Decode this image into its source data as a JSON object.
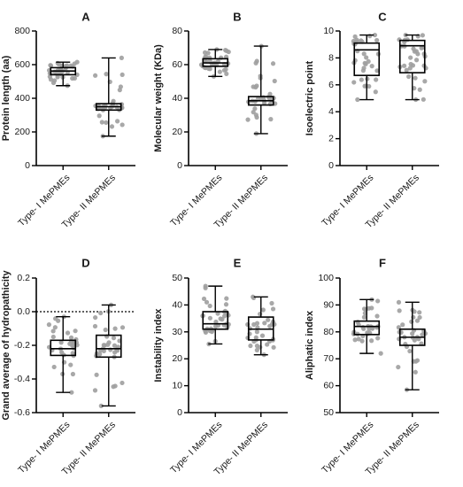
{
  "chart_data": [
    {
      "type": "box",
      "panel": "A",
      "ylabel": "Protein length (aa)",
      "ylim": [
        0,
        800
      ],
      "yticks": [
        "0",
        "200",
        "400",
        "600",
        "800"
      ],
      "categories": [
        "Type- I MePMEs",
        "Type- II MePMEs"
      ],
      "boxes": [
        {
          "name": "Type- I MePMEs",
          "min": 475,
          "q1": 540,
          "median": 562,
          "q3": 582,
          "max": 615
        },
        {
          "name": "Type- II MePMEs",
          "min": 175,
          "q1": 330,
          "median": 350,
          "q3": 368,
          "max": 640
        }
      ]
    },
    {
      "type": "box",
      "panel": "B",
      "ylabel": "Molecular weight (KDa)",
      "ylim": [
        0,
        80
      ],
      "yticks": [
        "0",
        "20",
        "40",
        "60",
        "80"
      ],
      "categories": [
        "Type- I MePMEs",
        "Type- II MePMEs"
      ],
      "boxes": [
        {
          "name": "Type- I MePMEs",
          "min": 53,
          "q1": 59,
          "median": 61,
          "q3": 63.5,
          "max": 69
        },
        {
          "name": "Type- II MePMEs",
          "min": 19,
          "q1": 36,
          "median": 38.5,
          "q3": 41,
          "max": 71
        }
      ]
    },
    {
      "type": "box",
      "panel": "C",
      "ylabel": "Isoelectric point",
      "ylim": [
        0,
        10
      ],
      "yticks": [
        "0",
        "2",
        "4",
        "6",
        "8",
        "10"
      ],
      "categories": [
        "Type- I MePMEs",
        "Type- II MePMEs"
      ],
      "boxes": [
        {
          "name": "Type- I MePMEs",
          "min": 4.9,
          "q1": 6.7,
          "median": 8.6,
          "q3": 9.1,
          "max": 9.7
        },
        {
          "name": "Type- II MePMEs",
          "min": 4.9,
          "q1": 6.9,
          "median": 8.9,
          "q3": 9.3,
          "max": 9.7
        }
      ]
    },
    {
      "type": "box",
      "panel": "D",
      "ylabel": "Grand average of hydropathicity",
      "ylim": [
        -0.6,
        0.2
      ],
      "yticks": [
        "-0.6",
        "-0.4",
        "-0.2",
        "0.0",
        "0.2"
      ],
      "reference_line": 0.0,
      "categories": [
        "Type- I MePMEs",
        "Type- II MePMEs"
      ],
      "boxes": [
        {
          "name": "Type- I MePMEs",
          "min": -0.48,
          "q1": -0.26,
          "median": -0.22,
          "q3": -0.17,
          "max": -0.03
        },
        {
          "name": "Type- II MePMEs",
          "min": -0.56,
          "q1": -0.27,
          "median": -0.22,
          "q3": -0.14,
          "max": 0.04
        }
      ]
    },
    {
      "type": "box",
      "panel": "E",
      "ylabel": "Instability index",
      "ylim": [
        0,
        50
      ],
      "yticks": [
        "0",
        "10",
        "20",
        "30",
        "40",
        "50"
      ],
      "categories": [
        "Type- I MePMEs",
        "Type- II MePMEs"
      ],
      "boxes": [
        {
          "name": "Type- I MePMEs",
          "min": 25.5,
          "q1": 31,
          "median": 33,
          "q3": 37.5,
          "max": 47
        },
        {
          "name": "Type- II MePMEs",
          "min": 21.5,
          "q1": 27,
          "median": 31,
          "q3": 35.5,
          "max": 43
        }
      ]
    },
    {
      "type": "box",
      "panel": "F",
      "ylabel": "Aliphatic index",
      "ylim": [
        50,
        100
      ],
      "yticks": [
        "50",
        "60",
        "70",
        "80",
        "90",
        "100"
      ],
      "categories": [
        "Type- I MePMEs",
        "Type- II MePMEs"
      ],
      "boxes": [
        {
          "name": "Type- I MePMEs",
          "min": 72,
          "q1": 79,
          "median": 82,
          "q3": 84,
          "max": 92
        },
        {
          "name": "Type- II MePMEs",
          "min": 58.5,
          "q1": 75,
          "median": 78,
          "q3": 81,
          "max": 91
        }
      ]
    }
  ]
}
